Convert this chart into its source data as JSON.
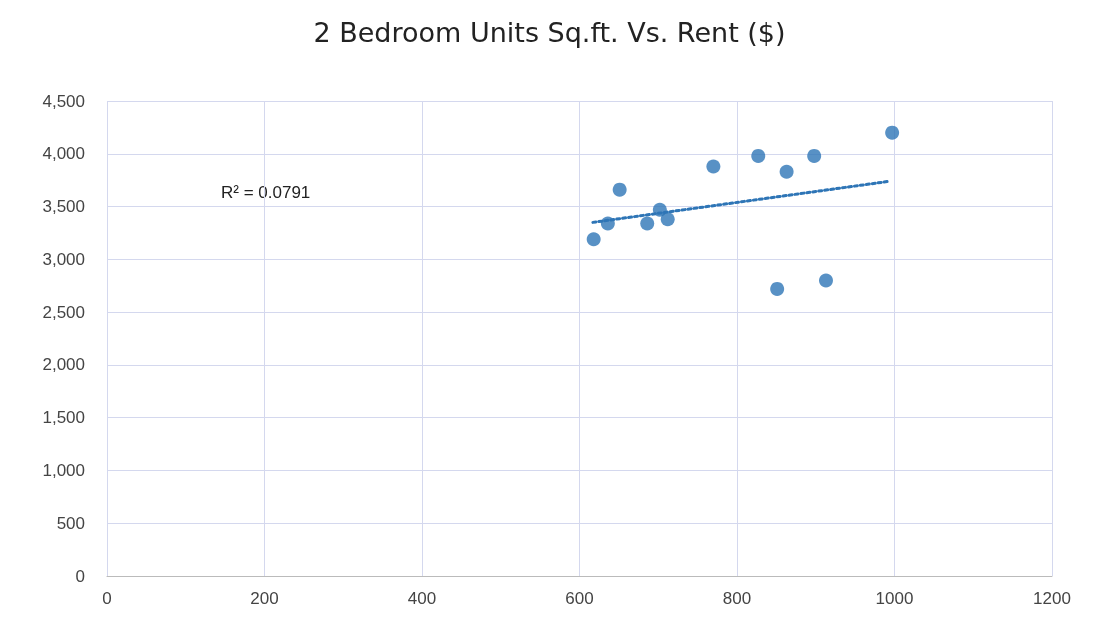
{
  "chart_data": {
    "type": "scatter",
    "title": "2 Bedroom Units Sq.ft. Vs. Rent ($)",
    "series": [
      {
        "color": "#2e75b6",
        "marker": "circle",
        "x": [
          618,
          636,
          651,
          686,
          702,
          712,
          770,
          827,
          863,
          898,
          997,
          851,
          913
        ],
        "values": [
          3190,
          3340,
          3660,
          3340,
          3470,
          3380,
          3880,
          3980,
          3830,
          3980,
          4200,
          2720,
          2800
        ]
      },
      {
        "type": "line",
        "color": "#2e75b6",
        "marker": "none",
        "line_style": "dotted",
        "x": [
          617,
          994
        ],
        "values": [
          3350,
          3740
        ]
      }
    ],
    "xlim": [
      0,
      1200
    ],
    "xticks": [
      0,
      200,
      400,
      600,
      800,
      1000,
      1200
    ],
    "ylim": [
      0,
      4500
    ],
    "yticks": [
      {
        "value": 0,
        "label": "0"
      },
      {
        "value": 500,
        "label": "500"
      },
      {
        "value": 1000,
        "label": "1,000"
      },
      {
        "value": 1500,
        "label": "1,500"
      },
      {
        "value": 2000,
        "label": "2,000"
      },
      {
        "value": 2500,
        "label": "2,500"
      },
      {
        "value": 3000,
        "label": "3,000"
      },
      {
        "value": 3500,
        "label": "3,500"
      },
      {
        "value": 4000,
        "label": "4,000"
      },
      {
        "value": 4500,
        "label": "4,500"
      }
    ],
    "grid": true,
    "annotations": [
      "R² = 0.0791"
    ]
  }
}
